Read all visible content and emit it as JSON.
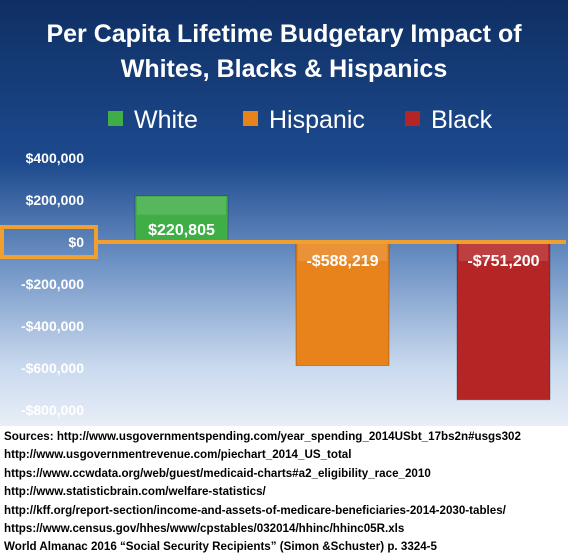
{
  "chart_data": {
    "type": "bar",
    "title_lines": [
      "Per Capita Lifetime Budgetary Impact of",
      "Whites, Blacks & Hispanics"
    ],
    "categories": [
      "White",
      "Hispanic",
      "Black"
    ],
    "values": [
      220805,
      -588219,
      -751200
    ],
    "value_labels": [
      "$220,805",
      "-$588,219",
      "-$751,200"
    ],
    "colors": [
      "#3fae47",
      "#e8831c",
      "#b52525"
    ],
    "legend_position": "top",
    "ylim": [
      -800000,
      400000
    ],
    "yticks": [
      {
        "value": 400000,
        "label": "$400,000"
      },
      {
        "value": 200000,
        "label": "$200,000"
      },
      {
        "value": 0,
        "label": "$0"
      },
      {
        "value": -200000,
        "label": "-$200,000"
      },
      {
        "value": -400000,
        "label": "-$400,000"
      },
      {
        "value": -600000,
        "label": "-$600,000"
      },
      {
        "value": -800000,
        "label": "-$800,000"
      }
    ],
    "zero_line_highlight_color": "#f0a030",
    "grid": false
  },
  "sources": [
    "Sources: http://www.usgovernmentspending.com/year_spending_2014USbt_17bs2n#usgs302",
    "http://www.usgovernmentrevenue.com/piechart_2014_US_total",
    "https://www.ccwdata.org/web/guest/medicaid-charts#a2_eligibility_race_2010",
    "http://www.statisticbrain.com/welfare-statistics/",
    "http://kff.org/report-section/income-and-assets-of-medicare-beneficiaries-2014-2030-tables/",
    "https://www.census.gov/hhes/www/cpstables/032014/hhinc/hhinc05R.xls",
    "World Almanac 2016 “Social Security Recipients” (Simon &Schuster) p. 3324-5"
  ]
}
